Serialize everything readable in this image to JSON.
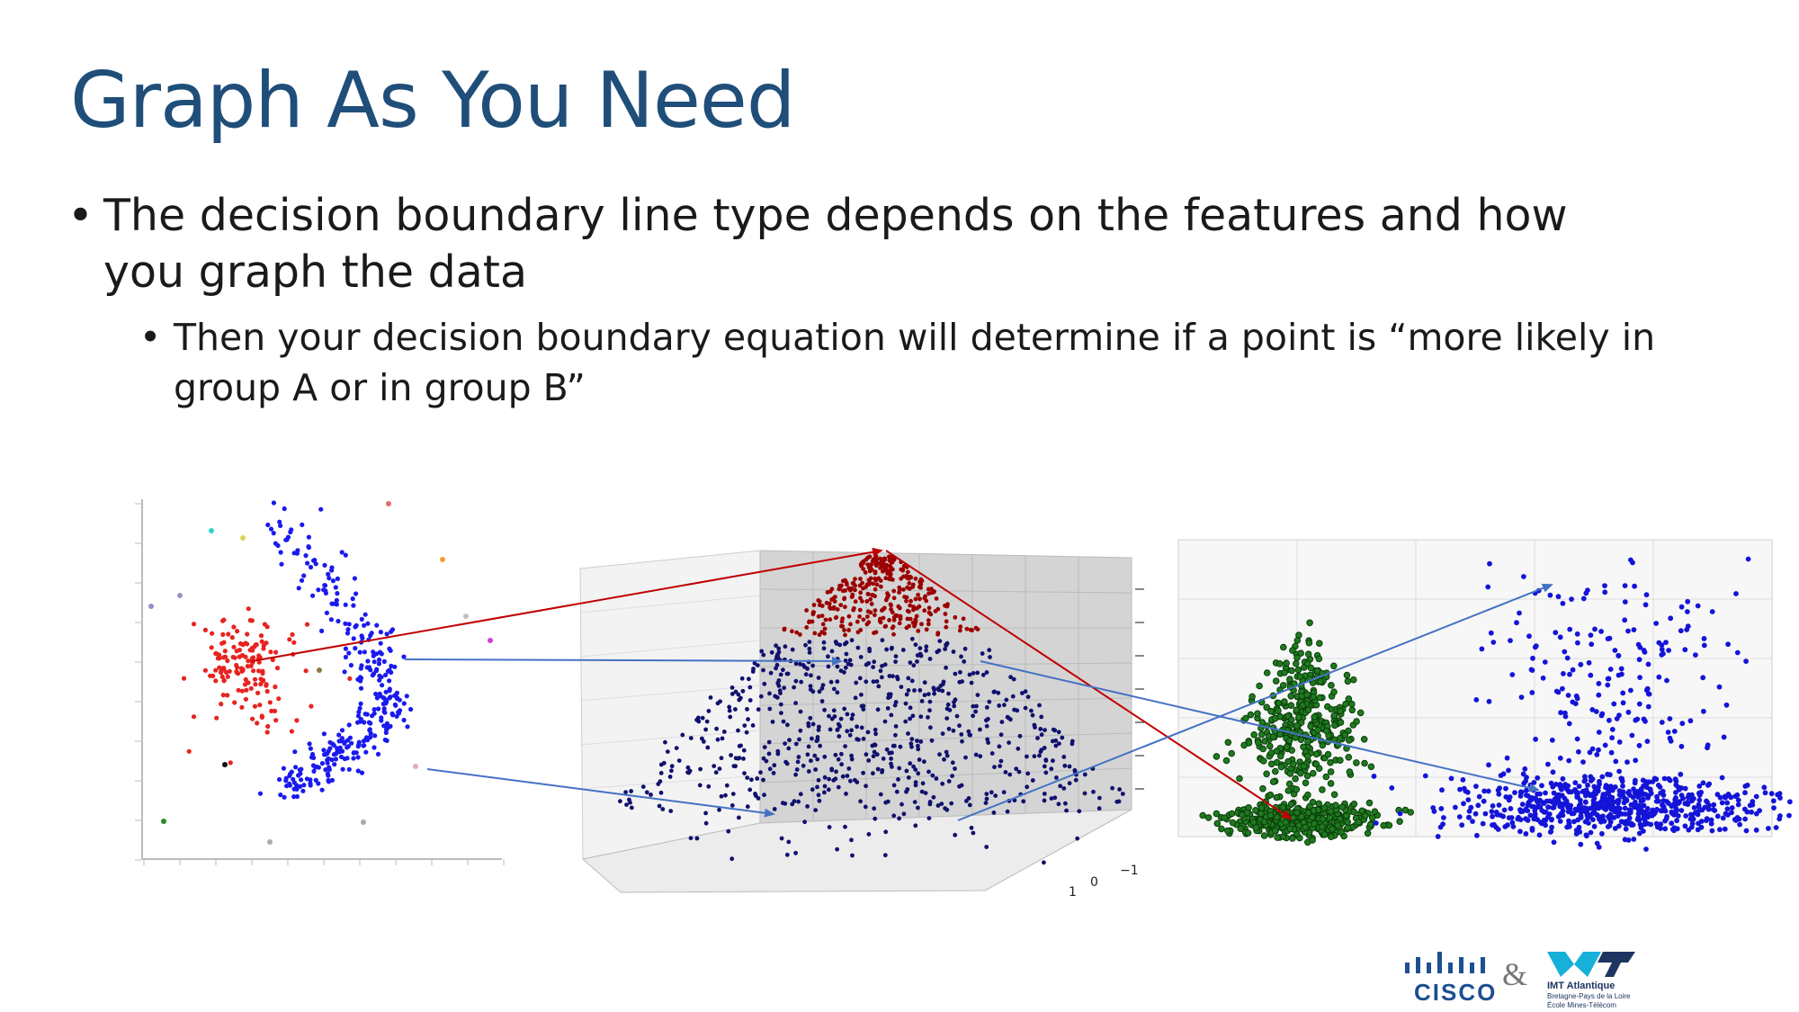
{
  "slide": {
    "title": "Graph As You Need",
    "bullet_1": "The decision boundary line type depends on the features and how you graph the data",
    "bullet_1_1": "Then your decision boundary equation will determine if a point is “more likely in group A or in group B”",
    "bullet_char": "•"
  },
  "figures": {
    "scatter_2d": {
      "colors": {
        "group_a": "#e8231f",
        "group_b": "#1a1aee"
      }
    },
    "surface_3d": {
      "colors": {
        "top": "#9b0000",
        "bottom": "#10106e"
      },
      "tick_labels": [
        "−1",
        "0",
        "1"
      ]
    },
    "density_plot": {
      "colors": {
        "green": "#1f7a1f",
        "blue": "#1414d8"
      }
    }
  },
  "arrows": {
    "red": "#c00000",
    "blue": "#4472c4"
  },
  "footer": {
    "cisco_label": "CISCO",
    "ampersand": "&",
    "imt_name": "IMT Atlantique",
    "imt_sub1": "Bretagne-Pays de la Loire",
    "imt_sub2": "École Mines-Télécom"
  }
}
